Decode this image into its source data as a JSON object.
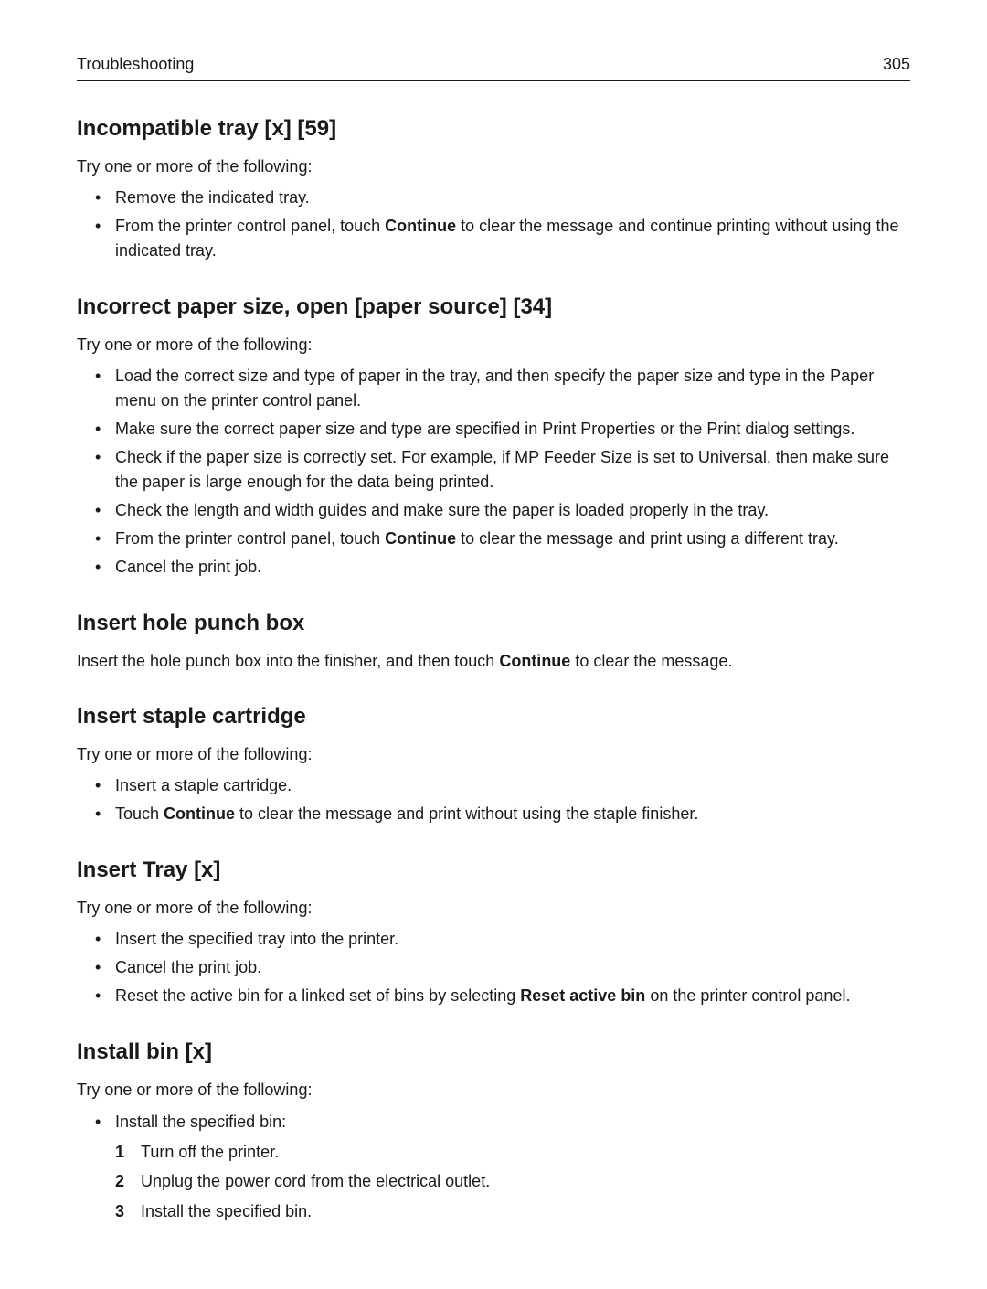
{
  "header": {
    "section": "Troubleshooting",
    "page_number": "305"
  },
  "sections": [
    {
      "key": "s1",
      "title": "Incompatible tray [x] [59]",
      "intro": "Try one or more of the following:",
      "bullets": [
        {
          "key": "s1b0",
          "parts": [
            "Remove the indicated tray."
          ]
        },
        {
          "key": "s1b1",
          "parts": [
            "From the printer control panel, touch ",
            {
              "bold": "Continue"
            },
            " to clear the message and continue printing without using the indicated tray."
          ]
        }
      ]
    },
    {
      "key": "s2",
      "title": "Incorrect paper size, open [paper source] [34]",
      "intro": "Try one or more of the following:",
      "bullets": [
        {
          "key": "s2b0",
          "parts": [
            "Load the correct size and type of paper in the tray, and then specify the paper size and type in the Paper menu on the printer control panel."
          ]
        },
        {
          "key": "s2b1",
          "parts": [
            "Make sure the correct paper size and type are specified in Print Properties or the Print dialog settings."
          ]
        },
        {
          "key": "s2b2",
          "parts": [
            "Check if the paper size is correctly set. For example, if MP Feeder Size is set to Universal, then make sure the paper is large enough for the data being printed."
          ]
        },
        {
          "key": "s2b3",
          "parts": [
            "Check the length and width guides and make sure the paper is loaded properly in the tray."
          ]
        },
        {
          "key": "s2b4",
          "parts": [
            "From the printer control panel, touch ",
            {
              "bold": "Continue"
            },
            " to clear the message and print using a different tray."
          ]
        },
        {
          "key": "s2b5",
          "parts": [
            "Cancel the print job."
          ]
        }
      ]
    },
    {
      "key": "s3",
      "title": "Insert hole punch box",
      "body_parts": [
        "Insert the hole punch box into the finisher, and then touch ",
        {
          "bold": "Continue"
        },
        " to clear the message."
      ]
    },
    {
      "key": "s4",
      "title": "Insert staple cartridge",
      "intro": "Try one or more of the following:",
      "bullets": [
        {
          "key": "s4b0",
          "parts": [
            "Insert a staple cartridge."
          ]
        },
        {
          "key": "s4b1",
          "parts": [
            "Touch ",
            {
              "bold": "Continue"
            },
            " to clear the message and print without using the staple finisher."
          ]
        }
      ]
    },
    {
      "key": "s5",
      "title": "Insert Tray [x]",
      "intro": "Try one or more of the following:",
      "bullets": [
        {
          "key": "s5b0",
          "parts": [
            "Insert the specified tray into the printer."
          ]
        },
        {
          "key": "s5b1",
          "parts": [
            "Cancel the print job."
          ]
        },
        {
          "key": "s5b2",
          "parts": [
            "Reset the active bin for a linked set of bins by selecting ",
            {
              "bold": "Reset active bin"
            },
            " on the printer control panel."
          ]
        }
      ]
    },
    {
      "key": "s6",
      "title": "Install bin [x]",
      "intro": "Try one or more of the following:",
      "bullets": [
        {
          "key": "s6b0",
          "parts": [
            "Install the specified bin:"
          ],
          "numbered": [
            {
              "key": "s6n1",
              "text": "Turn off the printer."
            },
            {
              "key": "s6n2",
              "text": "Unplug the power cord from the electrical outlet."
            },
            {
              "key": "s6n3",
              "text": "Install the specified bin."
            }
          ]
        }
      ]
    }
  ]
}
